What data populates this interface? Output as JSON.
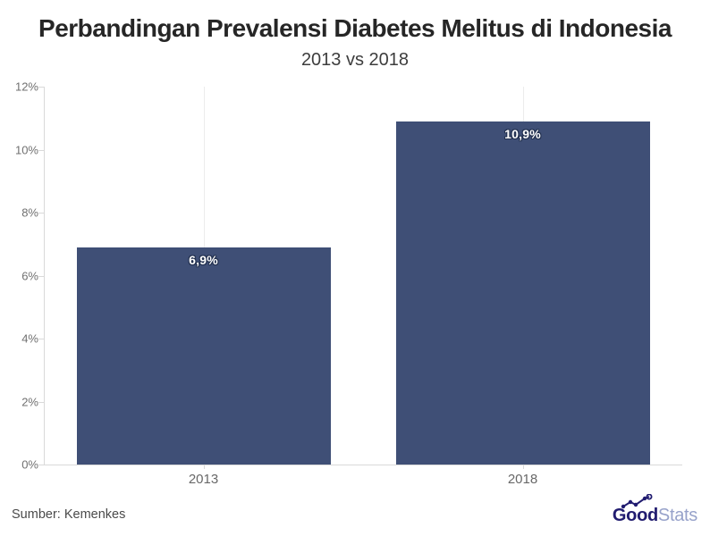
{
  "header": {
    "title": "Perbandingan Prevalensi Diabetes Melitus di Indonesia",
    "subtitle": "2013 vs 2018"
  },
  "chart_data": {
    "type": "bar",
    "title": "Perbandingan Prevalensi Diabetes Melitus di Indonesia",
    "subtitle": "2013 vs 2018",
    "categories": [
      "2013",
      "2018"
    ],
    "values": [
      6.9,
      10.9
    ],
    "value_labels": [
      "6,9%",
      "10,9%"
    ],
    "xlabel": "",
    "ylabel": "",
    "ylim": [
      0,
      12
    ],
    "ytick_values": [
      0,
      2,
      4,
      6,
      8,
      10,
      12
    ],
    "ytick_labels": [
      "0%",
      "2%",
      "4%",
      "6%",
      "8%",
      "10%",
      "12%"
    ],
    "grid": "vertical gridlines at category centers only",
    "legend": "none",
    "bar_color": "#3F4F76"
  },
  "colors": {
    "bar": "#3F4F76",
    "axis": "#d9d9d9",
    "grid": "#ececec",
    "tick_label": "#707070",
    "title": "#262626",
    "data_label_text": "#ffffff",
    "data_label_outline": "#22304F",
    "logo_dark": "#211c70",
    "logo_light": "#97a2ca"
  },
  "footer": {
    "source": "Sumber: Kemenkes",
    "logo_bold": "Good",
    "logo_light": "Stats"
  }
}
